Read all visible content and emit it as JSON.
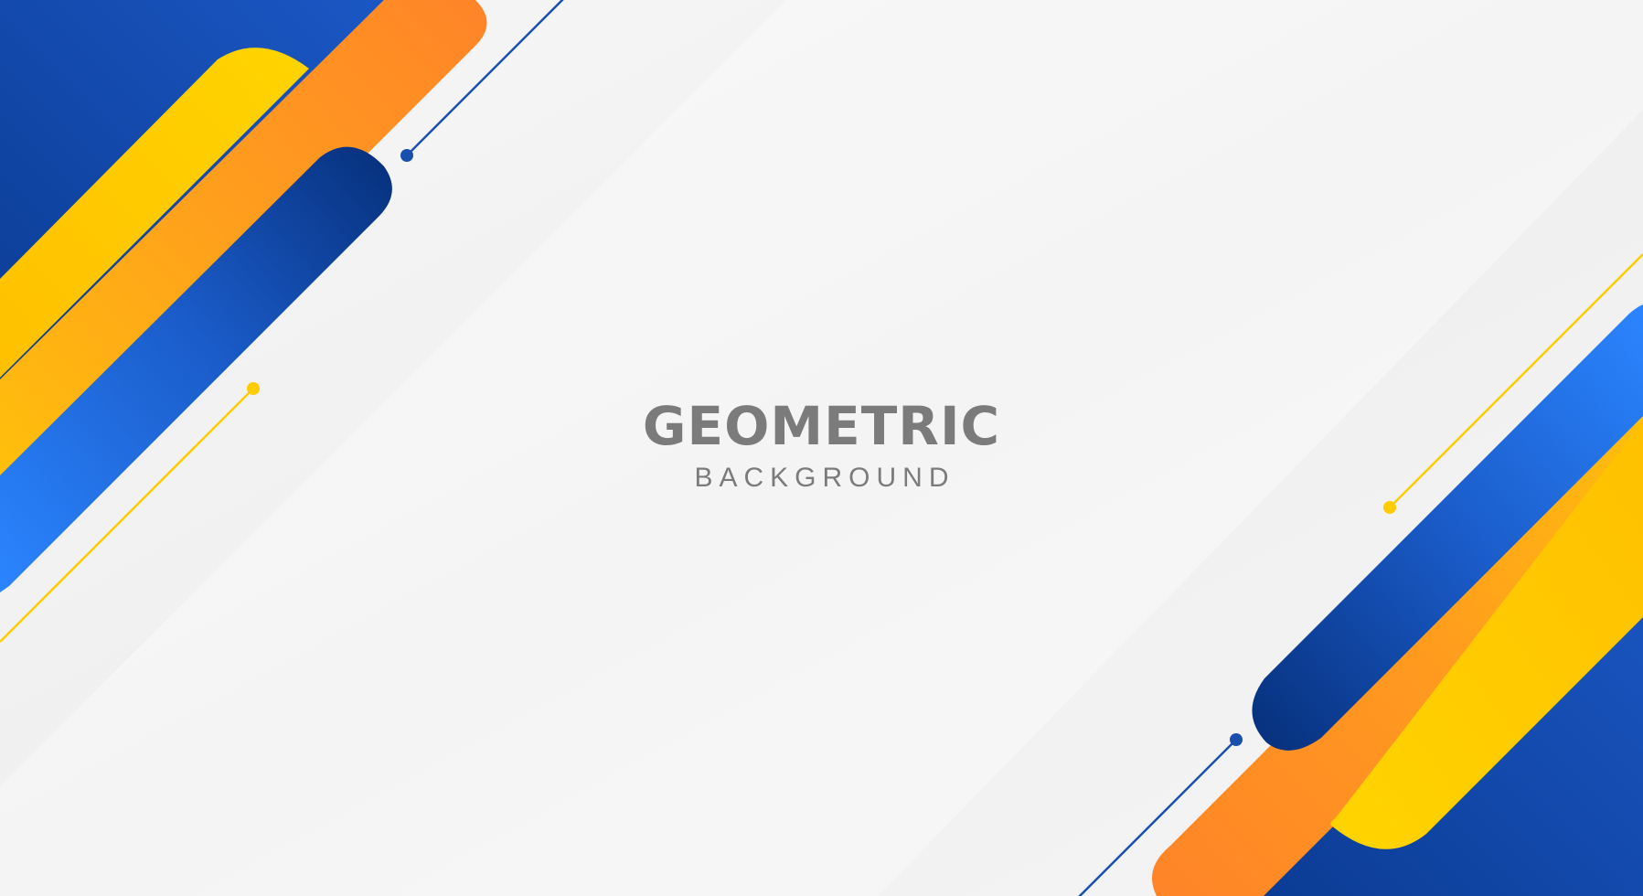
{
  "heading": {
    "title": "GEOMETRIC",
    "subtitle": "BACKGROUND"
  },
  "colors": {
    "background": "#f3f3f3",
    "text": "#7b7b7b",
    "blue_light": "#2d82f5",
    "blue_mid": "#1a5bc8",
    "blue_dark": "#0a3a8c",
    "navy": "#062f7a",
    "yellow": "#ffd000",
    "orange": "#ff8a1f"
  }
}
